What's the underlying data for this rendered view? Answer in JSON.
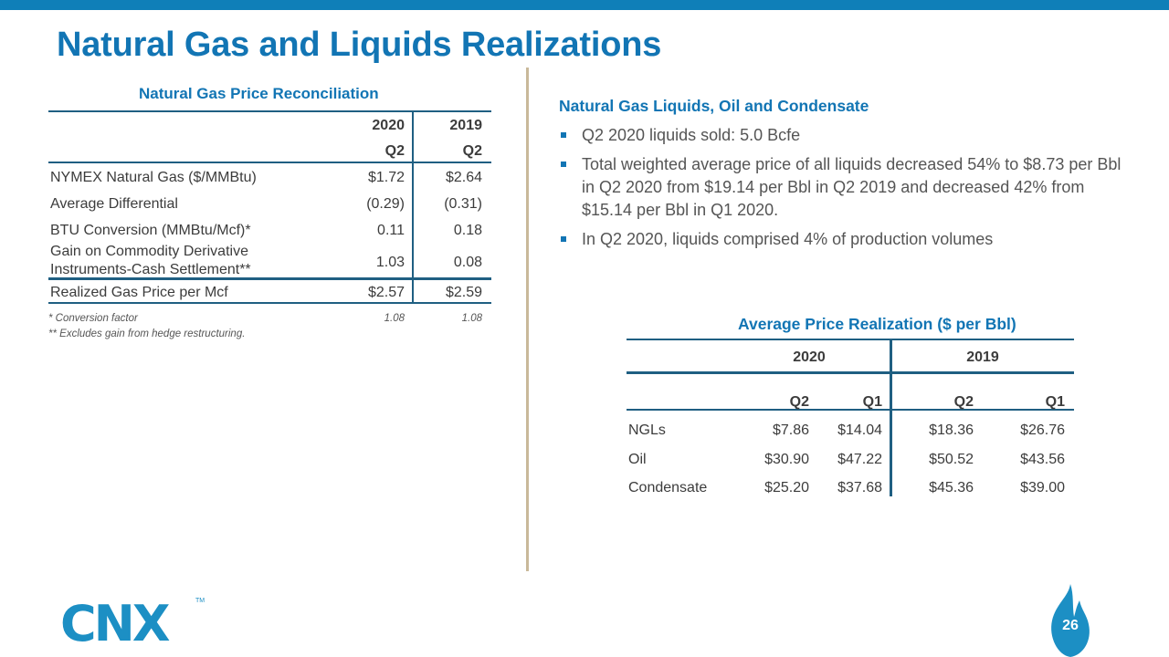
{
  "title": "Natural Gas and Liquids Realizations",
  "left_table": {
    "title": "Natural Gas Price Reconciliation",
    "year_headers": [
      "2020",
      "2019"
    ],
    "quarter_headers": [
      "Q2",
      "Q2"
    ],
    "rows": [
      {
        "label": "NYMEX Natural Gas ($/MMBtu)",
        "v2020": "$1.72",
        "v2019": "$2.64"
      },
      {
        "label": "Average Differential",
        "v2020": "(0.29)",
        "v2019": "(0.31)"
      },
      {
        "label": "BTU Conversion (MMBtu/Mcf)*",
        "v2020": "0.11",
        "v2019": "0.18"
      },
      {
        "label_line1": "Gain on Commodity Derivative",
        "label_line2": "Instruments-Cash Settlement**",
        "v2020": "1.03",
        "v2019": "0.08"
      },
      {
        "label": "Realized Gas Price per Mcf",
        "v2020": "$2.57",
        "v2019": "$2.59"
      }
    ],
    "footnote1": "* Conversion factor",
    "footnote1_v2020": "1.08",
    "footnote1_v2019": "1.08",
    "footnote2": "** Excludes gain from hedge restructuring."
  },
  "right": {
    "heading": "Natural Gas Liquids, Oil and Condensate",
    "bullets": [
      "Q2 2020 liquids sold: 5.0 Bcfe",
      "Total weighted average price of all liquids decreased 54% to $8.73 per Bbl in Q2 2020 from $19.14 per Bbl in Q2 2019 and decreased 42% from $15.14 per Bbl in Q1 2020.",
      "In Q2 2020, liquids comprised 4% of production volumes"
    ]
  },
  "right_table": {
    "title": "Average Price Realization ($ per Bbl)",
    "years": [
      "2020",
      "2019"
    ],
    "quarters": [
      "Q2",
      "Q1",
      "Q2",
      "Q1"
    ],
    "rows": [
      {
        "label": "NGLs",
        "values": [
          "$7.86",
          "$14.04",
          "$18.36",
          "$26.76"
        ]
      },
      {
        "label": "Oil",
        "values": [
          "$30.90",
          "$47.22",
          "$50.52",
          "$43.56"
        ]
      },
      {
        "label": "Condensate",
        "values": [
          "$25.20",
          "$37.68",
          "$45.36",
          "$39.00"
        ]
      }
    ]
  },
  "logo": {
    "text": "CNX",
    "tm": "TM"
  },
  "page_number": "26",
  "colors": {
    "brand_blue": "#1275b4",
    "top_bar": "#0f7fb8",
    "rule": "#1f5f82",
    "divider": "#c9b99a"
  }
}
